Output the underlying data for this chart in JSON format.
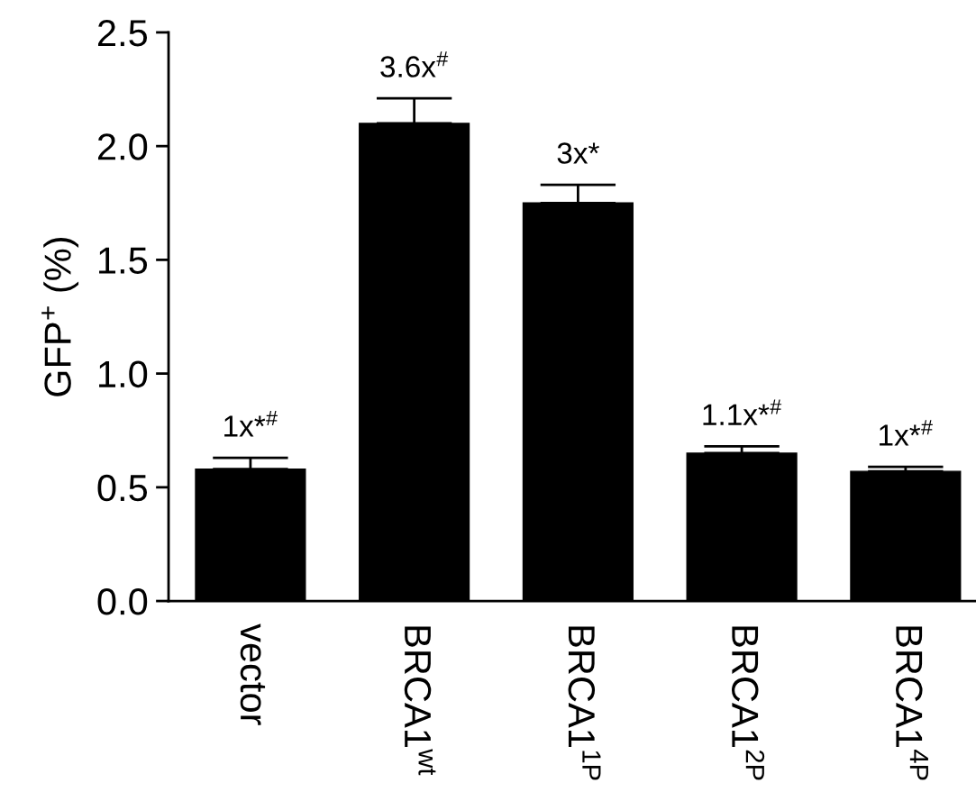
{
  "chart_data": {
    "type": "bar",
    "ylabel": "GFP$^{+}$ (%)",
    "categories": [
      "vector",
      "BRCA1$^{wt}$",
      "BRCA1$^{1P}$",
      "BRCA1$^{2P}$",
      "BRCA1$^{4P}$"
    ],
    "values": [
      0.58,
      2.1,
      1.75,
      0.65,
      0.57
    ],
    "errors": [
      [
        0.58,
        0.63
      ],
      [
        2.1,
        2.21
      ],
      [
        1.75,
        1.83
      ],
      [
        0.65,
        0.68
      ],
      [
        0.57,
        0.59
      ]
    ],
    "color": "#000000",
    "ylim": [
      0,
      2.5
    ],
    "yticks": [
      {
        "value": 0,
        "label": "0.0"
      },
      0.5,
      {
        "value": 1,
        "label": "1.0"
      },
      1.5,
      {
        "value": 2,
        "label": "2.0"
      },
      2.5
    ],
    "grid": false,
    "annotations": [
      "1x*$^{#}$",
      "3.6x$^{#}$",
      "3x*",
      "1.1x*$^{#}$",
      "1x*$^{#}$"
    ]
  }
}
